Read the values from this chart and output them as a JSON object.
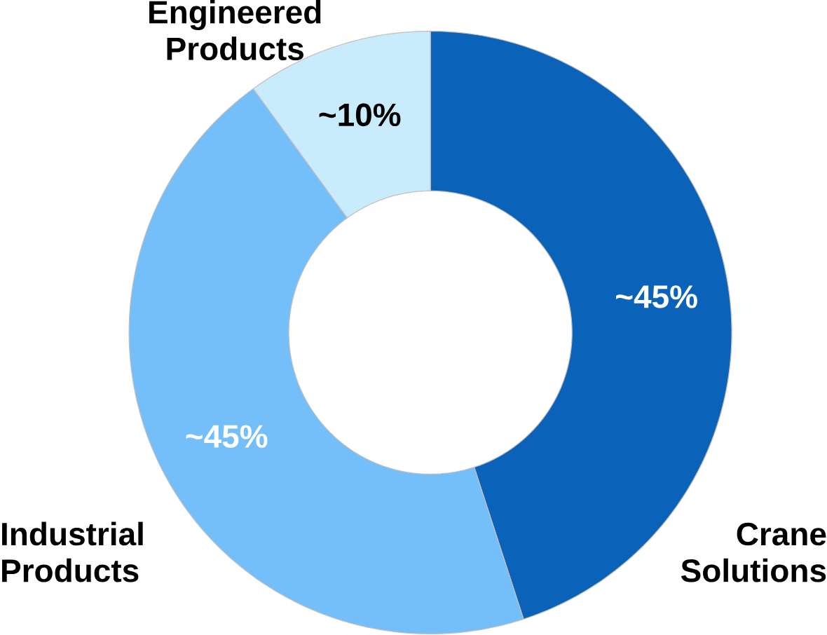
{
  "chart_data": {
    "type": "donut",
    "categories": [
      "Crane Solutions",
      "Industrial Products",
      "Engineered Products"
    ],
    "values": [
      45,
      45,
      10
    ],
    "colors": [
      "#0a63b8",
      "#74bff9",
      "#c9ecfd"
    ],
    "value_labels": [
      "~45%",
      "~45%",
      "~10%"
    ]
  }
}
